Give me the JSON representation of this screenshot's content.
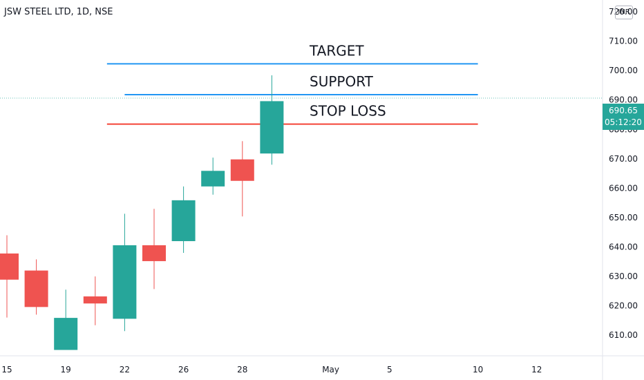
{
  "header": {
    "symbol_title": "JSW STEEL LTD, 1D, NSE",
    "currency": "INR"
  },
  "price_badge": {
    "price": "690.65",
    "countdown": "05:12:20"
  },
  "colors": {
    "bull": "#26a69a",
    "bear": "#ef5350",
    "target_line": "#2196f3",
    "support_line": "#2196f3",
    "stoploss_line": "#f44336",
    "axis_text": "#131722"
  },
  "chart_data": {
    "type": "candlestick",
    "title": "JSW STEEL LTD, 1D, NSE",
    "ylim": [
      603,
      724
    ],
    "y_ticks": [
      720.0,
      710.0,
      700.0,
      690.0,
      680.0,
      670.0,
      660.0,
      650.0,
      640.0,
      630.0,
      620.0,
      610.0
    ],
    "x_ticks": [
      {
        "label": "15",
        "pos": 0
      },
      {
        "label": "19",
        "pos": 2
      },
      {
        "label": "22",
        "pos": 4
      },
      {
        "label": "26",
        "pos": 6
      },
      {
        "label": "28",
        "pos": 8
      },
      {
        "label": "May",
        "pos": 11
      },
      {
        "label": "5",
        "pos": 13
      },
      {
        "label": "10",
        "pos": 16
      },
      {
        "label": "12",
        "pos": 18
      }
    ],
    "candles": [
      {
        "i": 0,
        "open": 637.8,
        "high": 644.0,
        "low": 616.0,
        "close": 628.9
      },
      {
        "i": 1,
        "open": 632.0,
        "high": 635.8,
        "low": 617.0,
        "close": 619.6
      },
      {
        "i": 2,
        "open": 605.0,
        "high": 625.5,
        "low": 605.0,
        "close": 615.9
      },
      {
        "i": 3,
        "open": 623.2,
        "high": 630.0,
        "low": 613.4,
        "close": 620.8
      },
      {
        "i": 4,
        "open": 615.6,
        "high": 651.3,
        "low": 611.4,
        "close": 640.6
      },
      {
        "i": 5,
        "open": 640.6,
        "high": 653.0,
        "low": 625.7,
        "close": 635.2
      },
      {
        "i": 6,
        "open": 642.0,
        "high": 660.6,
        "low": 638.0,
        "close": 655.9
      },
      {
        "i": 7,
        "open": 660.6,
        "high": 670.4,
        "low": 657.8,
        "close": 665.9
      },
      {
        "i": 8,
        "open": 669.8,
        "high": 676.0,
        "low": 650.4,
        "close": 662.5
      },
      {
        "i": 9,
        "open": 671.8,
        "high": 698.4,
        "low": 668.0,
        "close": 689.6
      }
    ],
    "lines": [
      {
        "label": "TARGET",
        "value": 702.3,
        "color": "#2196f3",
        "from_i": 3.4,
        "to_i": 16
      },
      {
        "label": "SUPPORT",
        "value": 691.8,
        "color": "#2196f3",
        "from_i": 4,
        "to_i": 16
      },
      {
        "label": "STOP LOSS",
        "value": 681.8,
        "color": "#f44336",
        "from_i": 3.4,
        "to_i": 16
      }
    ],
    "last_price": 690.65
  }
}
